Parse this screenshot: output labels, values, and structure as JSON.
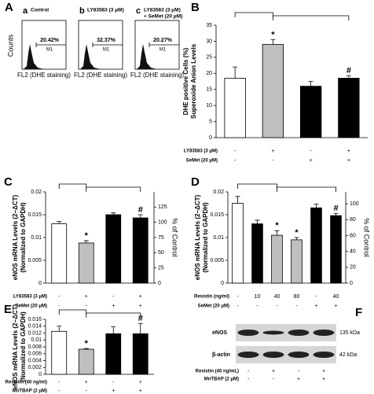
{
  "flow": {
    "label": "A",
    "ylabel": "Counts",
    "xlabel": "FL2 (DHE staining)",
    "gate": "M1",
    "panels": [
      {
        "letter": "a",
        "title": [
          "Control"
        ],
        "percent": "20.42%"
      },
      {
        "letter": "b",
        "title": [
          "LY83583 (3 μM)"
        ],
        "percent": "32.37%"
      },
      {
        "letter": "c",
        "title": [
          "LY83583 (3 μM)",
          "+ SeMet (20 μM)"
        ],
        "percent": "20.27%"
      }
    ]
  },
  "chart_data": [
    {
      "type": "bar",
      "label": "B",
      "ylabel": [
        "DHE positive Cells (%)",
        "Superoxide Anion Levels"
      ],
      "ylim": [
        0,
        35
      ],
      "yticks": [
        0,
        5,
        10,
        15,
        20,
        25,
        30,
        35
      ],
      "values": [
        18.5,
        29,
        16,
        18.5
      ],
      "errors": [
        3.5,
        1.5,
        1.5,
        0.8
      ],
      "colors": [
        "#ffffff",
        "#bfbfbf",
        "#000000",
        "#000000"
      ],
      "bar_labels": [
        null,
        "*",
        null,
        "#"
      ],
      "rows": [
        {
          "name": "LY83583 (3 μM)",
          "values": [
            "-",
            "+",
            "-",
            "+"
          ]
        },
        {
          "name": "SeMet (20 μM)",
          "values": [
            "-",
            "-",
            "+",
            "+"
          ]
        }
      ]
    },
    {
      "type": "bar",
      "label": "C",
      "ylabel": [
        "eNOS mRNA Levels (2−ΔCT)",
        "(Normalized to GAPDH)"
      ],
      "y2label": "% of Control",
      "ylim": [
        0,
        0.02
      ],
      "yticks": [
        0,
        0.005,
        0.01,
        0.015,
        0.02
      ],
      "y2lim": [
        0,
        150
      ],
      "y2ticks": [
        0,
        25,
        50,
        75,
        100,
        125
      ],
      "values": [
        0.013,
        0.0088,
        0.015,
        0.0143
      ],
      "errors": [
        0.0005,
        0.0005,
        0.0004,
        0.0007
      ],
      "colors": [
        "#ffffff",
        "#bfbfbf",
        "#000000",
        "#000000"
      ],
      "bar_labels": [
        null,
        "*",
        null,
        "#"
      ],
      "rows": [
        {
          "name": "LY83583 (3 μM)",
          "values": [
            "-",
            "+",
            "-",
            "+"
          ]
        },
        {
          "name": "SeMet (20 μM)",
          "values": [
            "-",
            "-",
            "+",
            "+"
          ]
        }
      ]
    },
    {
      "type": "bar",
      "label": "D",
      "ylabel": [
        "eNOS mRNA Levels (2−ΔCT)",
        "(Normalized to GAPDH)"
      ],
      "y2label": "% of Control",
      "ylim": [
        0,
        0.02
      ],
      "yticks": [
        0,
        0.005,
        0.01,
        0.015,
        0.02
      ],
      "y2lim": [
        0,
        115
      ],
      "y2ticks": [
        0,
        20,
        40,
        60,
        80,
        100
      ],
      "values": [
        0.0175,
        0.013,
        0.0105,
        0.0095,
        0.0165,
        0.0148
      ],
      "errors": [
        0.0015,
        0.0008,
        0.001,
        0.0005,
        0.0008,
        0.0005
      ],
      "colors": [
        "#ffffff",
        "#000000",
        "#bfbfbf",
        "#bfbfbf",
        "#000000",
        "#000000"
      ],
      "bar_labels": [
        null,
        null,
        "*",
        "*",
        null,
        "#"
      ],
      "rows": [
        {
          "name": "Resistin (ng/ml)",
          "values": [
            "-",
            "10",
            "40",
            "80",
            "-",
            "40"
          ]
        },
        {
          "name": "SeMet (20 μM)",
          "values": [
            "-",
            "-",
            "-",
            "-",
            "+",
            "+"
          ]
        }
      ]
    },
    {
      "type": "bar",
      "label": "E",
      "ylabel": [
        "eNOS mRNA Levels (2−ΔCT)",
        "(Normalized to GAPDH)"
      ],
      "ylim": [
        0,
        0.016
      ],
      "yticks": [
        0,
        0.002,
        0.004,
        0.006,
        0.008,
        0.01,
        0.012,
        0.014,
        0.016
      ],
      "values": [
        0.0125,
        0.0073,
        0.0118,
        0.0118
      ],
      "errors": [
        0.0015,
        0.0002,
        0.002,
        0.003
      ],
      "colors": [
        "#ffffff",
        "#bfbfbf",
        "#000000",
        "#000000"
      ],
      "bar_labels": [
        null,
        "*",
        null,
        "#"
      ],
      "rows": [
        {
          "name": "Resistin (40 ng/ml)",
          "values": [
            "-",
            "+",
            "-",
            "+"
          ]
        },
        {
          "name": "MnTBAP (2 μM)",
          "values": [
            "-",
            "-",
            "+",
            "+"
          ]
        }
      ]
    }
  ],
  "blot": {
    "label": "F",
    "bands": [
      "eNOS",
      "β-actin"
    ],
    "sizes": [
      "135 kDa",
      "42 kDa"
    ],
    "rows": [
      {
        "name": "Resistin (40 ng/mL)",
        "values": [
          "-",
          "+",
          "-",
          "+"
        ]
      },
      {
        "name": "MnTBAP (2 μM)",
        "values": [
          "-",
          "-",
          "+",
          "+"
        ]
      }
    ]
  }
}
